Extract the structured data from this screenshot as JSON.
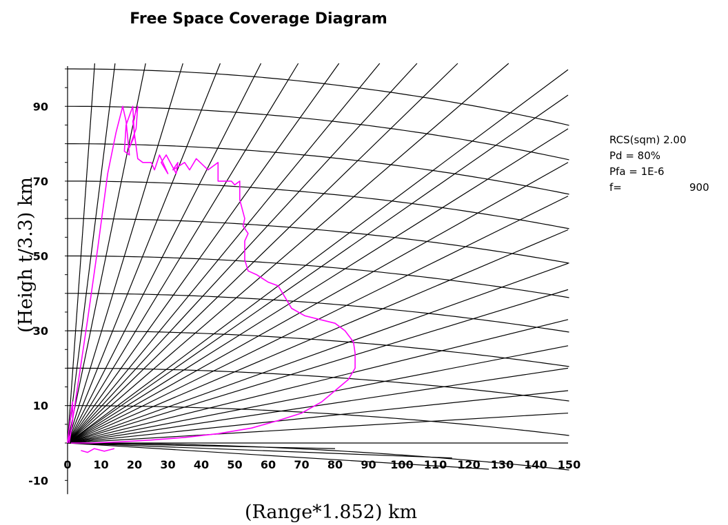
{
  "chart_data": {
    "type": "line",
    "title": "Free Space Coverage Diagram",
    "xlabel": "(Range*1.852) km",
    "ylabel": "(Heigh t/3.3) km",
    "xlim": [
      0,
      150
    ],
    "ylim": [
      -10,
      100
    ],
    "x_ticks": [
      "0",
      "10",
      "20",
      "30",
      "40",
      "50",
      "60",
      "70",
      "80",
      "90",
      "100",
      "110",
      "120",
      "130",
      "140",
      "150"
    ],
    "y_ticks": [
      "90",
      "70",
      "50",
      "30",
      "10",
      "-10"
    ],
    "grid": {
      "range_arcs_km": [
        10,
        20,
        30,
        40,
        50,
        60,
        70,
        80,
        90,
        100,
        110,
        120,
        130,
        140,
        150
      ],
      "elevation_rays": true
    },
    "annotations": {
      "rcs": "RCS(sqm) 2.00",
      "pd": "Pd = 80%",
      "pfa": "Pfa = 1E-6",
      "f_label": "f=",
      "f_value": "900"
    },
    "series": [
      {
        "color": "#ff00ff",
        "x": [
          0,
          1,
          3,
          6,
          9,
          12,
          14.5,
          16.5,
          17.5,
          18.5,
          17,
          17.5,
          19.5,
          20,
          18.5,
          20.5,
          21,
          19.5,
          21,
          22.5,
          25,
          26,
          27.5,
          30,
          28,
          29.5,
          32.5,
          33,
          31.5,
          35,
          36.5,
          38.5,
          42,
          45,
          45,
          49,
          50,
          51.5,
          51.5,
          53,
          52.5,
          54,
          53,
          53,
          54,
          56.5,
          60,
          63,
          65,
          67,
          71,
          75.5,
          80,
          83,
          85.5,
          86,
          86,
          84,
          80,
          76,
          70,
          63,
          55,
          45,
          35,
          25,
          15,
          7,
          3,
          1.5,
          1
        ],
        "y": [
          0,
          3,
          15,
          33,
          52,
          72,
          83,
          90,
          86,
          77,
          78,
          85,
          90,
          82,
          79,
          84,
          90,
          86,
          76,
          75,
          75,
          73,
          77,
          72,
          75,
          77,
          72,
          75,
          73,
          75,
          73,
          76,
          73,
          75,
          70,
          70,
          69,
          70,
          65,
          60,
          58,
          56,
          54,
          49,
          46,
          45,
          43,
          42,
          39,
          36,
          34,
          33,
          32,
          30,
          27,
          24,
          20,
          17,
          14,
          11,
          8,
          6,
          4,
          2.5,
          1.5,
          0.8,
          0.3,
          0,
          0,
          0,
          0
        ]
      },
      {
        "color": "#ff00ff",
        "x": [
          0,
          0.5,
          1,
          1.5,
          1.5,
          0.5
        ],
        "y": [
          0,
          4,
          8,
          11,
          6,
          0
        ]
      },
      {
        "color": "#ff00ff",
        "x": [
          4,
          6,
          8,
          11,
          14
        ],
        "y": [
          -2,
          -2.5,
          -1.5,
          -2.2,
          -1.5
        ]
      }
    ]
  }
}
